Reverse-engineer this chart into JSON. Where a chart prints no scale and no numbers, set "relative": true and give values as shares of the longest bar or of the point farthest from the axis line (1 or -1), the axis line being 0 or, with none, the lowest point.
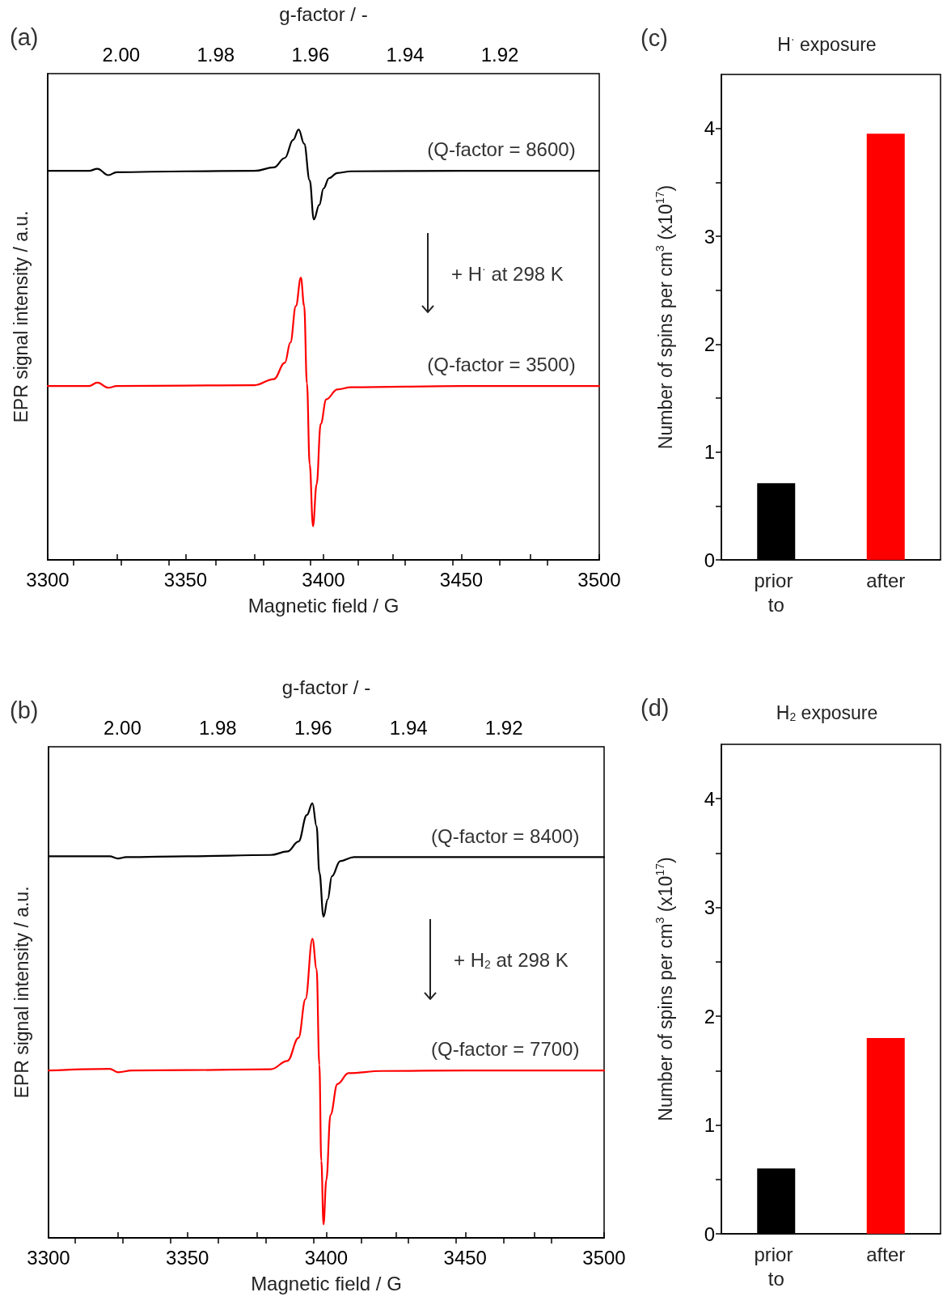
{
  "chart_data": [
    {
      "type": "line",
      "relative": true,
      "marker": "none",
      "line_style": "solid",
      "xlabel": "Magnetic field / G",
      "ylabel": "EPR signal intensity / a.u.",
      "x2label": "g-factor / -",
      "xlim": [
        3300,
        3500
      ],
      "xticks": [
        3300,
        {
          "value": 3325,
          "label": null
        },
        3350,
        {
          "value": 3375,
          "label": null
        },
        3400,
        {
          "value": 3425,
          "label": null
        },
        3450,
        {
          "value": 3475,
          "label": null
        },
        3500
      ],
      "x2lim": [
        2.0155,
        1.899
      ],
      "x2ticks": [
        {
          "value": 2.01,
          "label": null
        },
        {
          "value": 2.0,
          "label": "2.00"
        },
        {
          "value": 1.99,
          "label": null
        },
        1.98,
        {
          "value": 1.97,
          "label": null
        },
        1.96,
        {
          "value": 1.95,
          "label": null
        },
        1.94,
        {
          "value": 1.93,
          "label": null
        },
        1.92,
        {
          "value": 1.91,
          "label": null
        }
      ],
      "annotations": [
        "(a)",
        "(Q-factor = 8600)",
        "+ H$^{·}$ at 298 K",
        "(Q-factor = 3500)"
      ],
      "series": [
        {
          "color": "#000000",
          "x": [
            3300,
            3315,
            3318,
            3322,
            3325,
            3350,
            3375,
            3382,
            3386,
            3389,
            3391,
            3393,
            3395,
            3396.5,
            3398.5,
            3400,
            3402,
            3405,
            3410,
            3450,
            3500
          ],
          "values": [
            0.904,
            0.904,
            0.909,
            0.894,
            0.901,
            0.903,
            0.904,
            0.912,
            0.934,
            0.976,
            1.0,
            0.967,
            0.882,
            0.791,
            0.825,
            0.863,
            0.887,
            0.899,
            0.903,
            0.904,
            0.904
          ]
        },
        {
          "color": "#ff0000",
          "x": [
            3300,
            3315,
            3318,
            3322,
            3325,
            3350,
            3375,
            3382,
            3386,
            3388,
            3390,
            3391.8,
            3393,
            3394,
            3395,
            3396.2,
            3397.5,
            3399,
            3401,
            3405,
            3410,
            3450,
            3500
          ],
          "values": [
            0.404,
            0.404,
            0.412,
            0.4,
            0.404,
            0.405,
            0.406,
            0.42,
            0.458,
            0.505,
            0.59,
            0.656,
            0.59,
            0.41,
            0.222,
            0.078,
            0.175,
            0.316,
            0.373,
            0.396,
            0.401,
            0.404,
            0.404
          ]
        }
      ]
    },
    {
      "type": "bar",
      "title": "H$^{·}$ exposure",
      "annotations": [
        "(c)"
      ],
      "ylabel": "Number of spins per cm$^{3}$ (x10$^{17}$)",
      "categories": [
        "prior to",
        "after"
      ],
      "values": [
        0.71,
        3.95
      ],
      "colors": [
        "#000000",
        "#ff0000"
      ],
      "ylim": [
        0,
        4.5
      ],
      "yticks": [
        0,
        {
          "value": 0.5,
          "label": null
        },
        1,
        {
          "value": 1.5,
          "label": null
        },
        2,
        {
          "value": 2.5,
          "label": null
        },
        3,
        {
          "value": 3.5,
          "label": null
        },
        4
      ]
    },
    {
      "type": "line",
      "relative": true,
      "marker": "none",
      "line_style": "solid",
      "xlabel": "Magnetic field / G",
      "ylabel": "EPR signal intensity / a.u.",
      "x2label": "g-factor / -",
      "xlim": [
        3300,
        3500
      ],
      "xticks": [
        3300,
        {
          "value": 3325,
          "label": null
        },
        3350,
        {
          "value": 3375,
          "label": null
        },
        3400,
        {
          "value": 3425,
          "label": null
        },
        3450,
        {
          "value": 3475,
          "label": null
        },
        3500
      ],
      "x2lim": [
        2.0155,
        1.899
      ],
      "x2ticks": [
        {
          "value": 2.01,
          "label": null
        },
        {
          "value": 2.0,
          "label": "2.00"
        },
        {
          "value": 1.99,
          "label": null
        },
        1.98,
        {
          "value": 1.97,
          "label": null
        },
        1.96,
        {
          "value": 1.95,
          "label": null
        },
        1.94,
        {
          "value": 1.93,
          "label": null
        },
        1.92,
        {
          "value": 1.91,
          "label": null
        }
      ],
      "annotations": [
        "(b)",
        "(Q-factor = 8400)",
        "+ H$_{2}$ at 298 K",
        "(Q-factor = 7700)"
      ],
      "series": [
        {
          "color": "#000000",
          "x": [
            3300,
            3322,
            3325,
            3328,
            3350,
            3380,
            3386,
            3390,
            3393,
            3395,
            3396.5,
            3397.5,
            3399,
            3400.5,
            3402,
            3405,
            3410,
            3450,
            3500
          ],
          "values": [
            0.878,
            0.878,
            0.873,
            0.876,
            0.878,
            0.881,
            0.889,
            0.912,
            0.973,
            1.0,
            0.947,
            0.841,
            0.739,
            0.779,
            0.832,
            0.867,
            0.876,
            0.876,
            0.876
          ]
        },
        {
          "color": "#ff0000",
          "x": [
            3300,
            3322,
            3325,
            3330,
            3350,
            3380,
            3386,
            3390,
            3392.5,
            3395,
            3396.5,
            3397.5,
            3398.2,
            3399,
            3400,
            3401.5,
            3404,
            3408,
            3420,
            3450,
            3500
          ],
          "values": [
            0.385,
            0.389,
            0.381,
            0.385,
            0.386,
            0.388,
            0.407,
            0.46,
            0.549,
            0.688,
            0.619,
            0.398,
            0.177,
            0.031,
            0.133,
            0.283,
            0.354,
            0.379,
            0.384,
            0.385,
            0.385
          ]
        }
      ]
    },
    {
      "type": "bar",
      "title": "H$_{2}$ exposure",
      "annotations": [
        "(d)"
      ],
      "ylabel": "Number of spins per cm$^{3}$ (x10$^{17}$)",
      "categories": [
        "prior to",
        "after"
      ],
      "values": [
        0.6,
        1.8
      ],
      "colors": [
        "#000000",
        "#ff0000"
      ],
      "ylim": [
        0,
        4.5
      ],
      "yticks": [
        0,
        {
          "value": 0.5,
          "label": null
        },
        1,
        {
          "value": 1.5,
          "label": null
        },
        2,
        {
          "value": 2.5,
          "label": null
        },
        3,
        {
          "value": 3.5,
          "label": null
        },
        4
      ]
    }
  ]
}
